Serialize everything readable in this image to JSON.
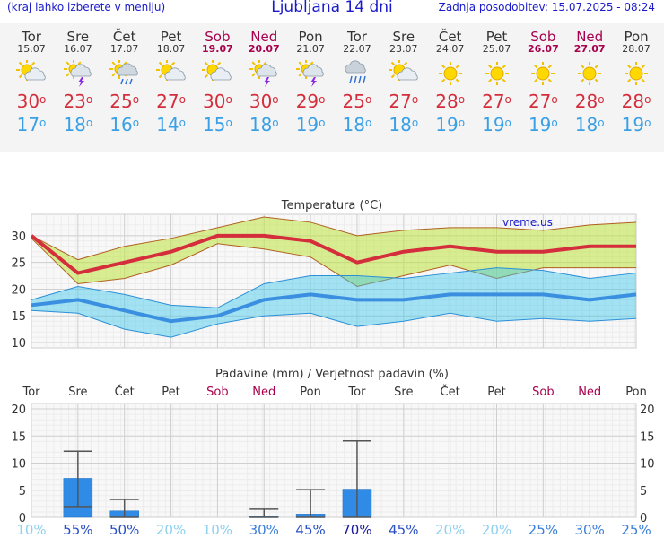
{
  "header": {
    "left_note": "(kraj lahko izberete v meniju)",
    "title": "Ljubljana 14 dni",
    "updated": "Zadnja posodobitev: 15.07.2025 - 08:24"
  },
  "colors": {
    "accent_blue": "#1a1acc",
    "weekend": "#a8004c",
    "tmax": "#d42d3c",
    "tmin": "#3aa0e6",
    "bar": "#2f8be6"
  },
  "days": [
    {
      "name": "Tor",
      "date": "15.07",
      "weekend": false,
      "icon": "sun-cloud-icon",
      "tmax": "30",
      "tmin": "17"
    },
    {
      "name": "Sre",
      "date": "16.07",
      "weekend": false,
      "icon": "storm-icon",
      "tmax": "23",
      "tmin": "18"
    },
    {
      "name": "Čet",
      "date": "17.07",
      "weekend": false,
      "icon": "sun-rain-icon",
      "tmax": "25",
      "tmin": "16"
    },
    {
      "name": "Pet",
      "date": "18.07",
      "weekend": false,
      "icon": "sun-cloud-icon",
      "tmax": "27",
      "tmin": "14"
    },
    {
      "name": "Sob",
      "date": "19.07",
      "weekend": true,
      "icon": "sun-cloud-icon",
      "tmax": "30",
      "tmin": "15"
    },
    {
      "name": "Ned",
      "date": "20.07",
      "weekend": true,
      "icon": "storm-icon",
      "tmax": "30",
      "tmin": "18"
    },
    {
      "name": "Pon",
      "date": "21.07",
      "weekend": false,
      "icon": "storm-icon",
      "tmax": "29",
      "tmin": "19"
    },
    {
      "name": "Tor",
      "date": "22.07",
      "weekend": false,
      "icon": "rain-cloud-icon",
      "tmax": "25",
      "tmin": "18"
    },
    {
      "name": "Sre",
      "date": "23.07",
      "weekend": false,
      "icon": "sun-cloud-icon",
      "tmax": "27",
      "tmin": "18"
    },
    {
      "name": "Čet",
      "date": "24.07",
      "weekend": false,
      "icon": "sun-icon",
      "tmax": "28",
      "tmin": "19"
    },
    {
      "name": "Pet",
      "date": "25.07",
      "weekend": false,
      "icon": "sun-icon",
      "tmax": "27",
      "tmin": "19"
    },
    {
      "name": "Sob",
      "date": "26.07",
      "weekend": true,
      "icon": "sun-icon",
      "tmax": "27",
      "tmin": "19"
    },
    {
      "name": "Ned",
      "date": "27.07",
      "weekend": true,
      "icon": "sun-icon",
      "tmax": "28",
      "tmin": "18"
    },
    {
      "name": "Pon",
      "date": "28.07",
      "weekend": false,
      "icon": "sun-icon",
      "tmax": "28",
      "tmin": "19"
    }
  ],
  "chart_data": [
    {
      "type": "line",
      "title": "Temperatura (°C)",
      "watermark": "vreme.us",
      "ylim": [
        9,
        34
      ],
      "yticks": [
        10,
        15,
        20,
        25,
        30
      ],
      "grid": true,
      "series": [
        {
          "values": [
            30,
            23,
            25,
            27,
            30,
            30,
            29,
            25,
            27,
            28,
            27,
            27,
            28,
            28
          ]
        },
        {
          "values": [
            30,
            25.5,
            28,
            29.5,
            31.5,
            33.5,
            32.5,
            30,
            31,
            31.5,
            31.5,
            31,
            32,
            32.5
          ]
        },
        {
          "values": [
            29.5,
            21,
            22,
            24.5,
            28.5,
            27.5,
            26,
            20.5,
            22.5,
            24.5,
            22,
            24,
            24,
            24
          ]
        },
        {
          "values": [
            17,
            18,
            16,
            14,
            15,
            18,
            19,
            18,
            18,
            19,
            19,
            19,
            18,
            19
          ]
        },
        {
          "values": [
            18,
            20.5,
            19,
            17,
            16.5,
            21,
            22.5,
            22.5,
            22,
            23,
            24,
            23.5,
            22,
            23
          ]
        },
        {
          "values": [
            16,
            15.5,
            12.5,
            11,
            13.5,
            15,
            15.5,
            13,
            14,
            15.5,
            14,
            14.5,
            14,
            14.5
          ]
        }
      ]
    },
    {
      "type": "bar",
      "title": "Padavine (mm) / Verjetnost padavin (%)",
      "categories": [
        "Tor",
        "Sre",
        "Čet",
        "Pet",
        "Sob",
        "Ned",
        "Pon",
        "Tor",
        "Sre",
        "Čet",
        "Pet",
        "Sob",
        "Ned",
        "Pon"
      ],
      "ylim": [
        0,
        21
      ],
      "yticks": [
        0,
        5,
        10,
        15,
        20
      ],
      "grid": true,
      "values": [
        0,
        7.2,
        1.2,
        0,
        0,
        0.2,
        0.6,
        5.2,
        0,
        0,
        0,
        0,
        0,
        0
      ],
      "error_low": [
        null,
        2,
        0,
        null,
        null,
        0,
        0,
        0,
        null,
        null,
        null,
        null,
        null,
        null
      ],
      "error_high": [
        null,
        12.2,
        3.3,
        null,
        null,
        1.5,
        5.1,
        14.1,
        null,
        null,
        null,
        null,
        null,
        null
      ],
      "probability": [
        "10%",
        "55%",
        "50%",
        "20%",
        "10%",
        "30%",
        "45%",
        "70%",
        "45%",
        "20%",
        "20%",
        "25%",
        "30%",
        "25%"
      ]
    }
  ]
}
